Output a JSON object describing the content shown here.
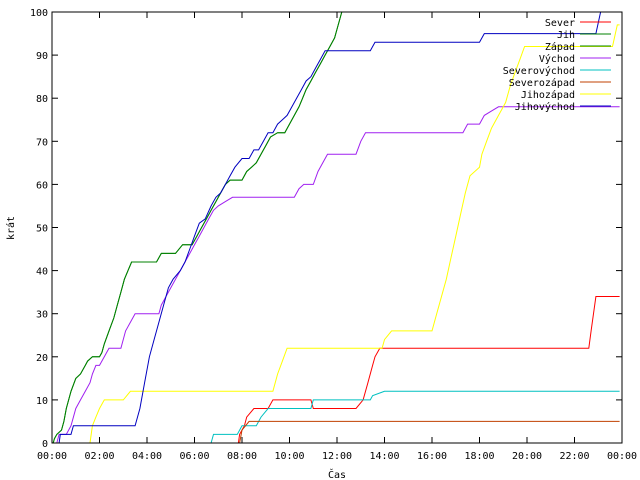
{
  "chart_data": {
    "type": "line",
    "title": "",
    "xlabel": "Čas",
    "ylabel": "krát",
    "xlim": [
      0,
      24
    ],
    "ylim": [
      0,
      100
    ],
    "x_ticks": [
      {
        "value": 0,
        "label": "00:00"
      },
      {
        "value": 2,
        "label": "02:00"
      },
      {
        "value": 4,
        "label": "04:00"
      },
      {
        "value": 6,
        "label": "06:00"
      },
      {
        "value": 8,
        "label": "08:00"
      },
      {
        "value": 10,
        "label": "10:00"
      },
      {
        "value": 12,
        "label": "12:00"
      },
      {
        "value": 14,
        "label": "14:00"
      },
      {
        "value": 16,
        "label": "16:00"
      },
      {
        "value": 18,
        "label": "18:00"
      },
      {
        "value": 20,
        "label": "20:00"
      },
      {
        "value": 22,
        "label": "22:00"
      },
      {
        "value": 24,
        "label": "00:00"
      }
    ],
    "y_ticks": [
      0,
      10,
      20,
      30,
      40,
      50,
      60,
      70,
      80,
      90,
      100
    ],
    "grid": false,
    "legend_position": "top-right",
    "series": [
      {
        "name": "Sever",
        "color": "#ff0000",
        "points": [
          [
            7.85,
            0
          ],
          [
            7.9,
            2
          ],
          [
            8.1,
            4
          ],
          [
            8.2,
            6
          ],
          [
            8.35,
            7
          ],
          [
            8.5,
            8
          ],
          [
            9.1,
            8
          ],
          [
            9.3,
            10
          ],
          [
            10.9,
            10
          ],
          [
            11.0,
            8
          ],
          [
            12.8,
            8
          ],
          [
            13.1,
            10
          ],
          [
            13.3,
            14
          ],
          [
            13.5,
            18
          ],
          [
            13.6,
            20
          ],
          [
            13.8,
            22
          ],
          [
            22.6,
            22
          ],
          [
            22.7,
            26
          ],
          [
            22.8,
            30
          ],
          [
            22.9,
            34
          ],
          [
            23.9,
            34
          ]
        ]
      },
      {
        "name": "Jih",
        "color": "#008000",
        "points": [
          [
            0.05,
            0
          ],
          [
            0.1,
            1
          ],
          [
            0.2,
            2
          ],
          [
            0.4,
            3
          ],
          [
            0.5,
            5
          ],
          [
            0.6,
            8
          ],
          [
            0.8,
            12
          ],
          [
            1.0,
            15
          ],
          [
            1.2,
            16
          ],
          [
            1.4,
            18
          ],
          [
            1.5,
            19
          ],
          [
            1.7,
            20
          ],
          [
            2.0,
            20
          ],
          [
            2.1,
            21
          ],
          [
            2.2,
            23
          ],
          [
            2.4,
            26
          ],
          [
            2.6,
            29
          ],
          [
            2.75,
            32
          ],
          [
            2.9,
            35
          ],
          [
            3.05,
            38
          ],
          [
            3.2,
            40
          ],
          [
            3.35,
            42
          ],
          [
            4.4,
            42
          ],
          [
            4.6,
            44
          ],
          [
            5.2,
            44
          ],
          [
            5.5,
            46
          ],
          [
            5.9,
            46
          ],
          [
            6.1,
            48
          ],
          [
            6.3,
            50
          ],
          [
            6.5,
            52
          ],
          [
            6.7,
            54
          ],
          [
            6.9,
            56
          ],
          [
            7.1,
            58
          ],
          [
            7.3,
            60
          ],
          [
            7.5,
            61
          ],
          [
            8.0,
            61
          ],
          [
            8.2,
            63
          ],
          [
            8.4,
            64
          ],
          [
            8.6,
            65
          ],
          [
            8.8,
            67
          ],
          [
            9.0,
            69
          ],
          [
            9.2,
            71
          ],
          [
            9.5,
            72
          ],
          [
            9.8,
            72
          ],
          [
            10.0,
            74
          ],
          [
            10.2,
            76
          ],
          [
            10.4,
            78
          ],
          [
            10.55,
            80
          ],
          [
            10.7,
            82
          ],
          [
            10.9,
            84
          ],
          [
            11.1,
            86
          ],
          [
            11.3,
            88
          ],
          [
            11.5,
            90
          ],
          [
            11.7,
            92
          ],
          [
            11.9,
            94
          ],
          [
            12.0,
            96
          ],
          [
            12.1,
            98
          ],
          [
            12.2,
            100
          ]
        ]
      },
      {
        "name": "Západ",
        "color": "#008000",
        "points": [
          [
            0.05,
            0
          ],
          [
            0.1,
            1
          ],
          [
            0.2,
            2
          ],
          [
            0.4,
            3
          ],
          [
            0.5,
            5
          ],
          [
            0.6,
            8
          ],
          [
            0.8,
            12
          ],
          [
            1.0,
            15
          ],
          [
            1.2,
            16
          ],
          [
            1.4,
            18
          ],
          [
            1.5,
            19
          ],
          [
            1.7,
            20
          ],
          [
            2.0,
            20
          ],
          [
            2.1,
            21
          ],
          [
            2.2,
            23
          ],
          [
            2.4,
            26
          ],
          [
            2.6,
            29
          ],
          [
            2.75,
            32
          ],
          [
            2.9,
            35
          ],
          [
            3.05,
            38
          ],
          [
            3.2,
            40
          ],
          [
            3.35,
            42
          ],
          [
            4.4,
            42
          ],
          [
            4.6,
            44
          ],
          [
            5.2,
            44
          ],
          [
            5.5,
            46
          ],
          [
            5.9,
            46
          ],
          [
            6.1,
            48
          ],
          [
            6.3,
            50
          ],
          [
            6.5,
            52
          ],
          [
            6.7,
            54
          ],
          [
            6.9,
            56
          ],
          [
            7.1,
            58
          ],
          [
            7.3,
            60
          ],
          [
            7.5,
            61
          ],
          [
            8.0,
            61
          ],
          [
            8.2,
            63
          ],
          [
            8.4,
            64
          ],
          [
            8.6,
            65
          ],
          [
            8.8,
            67
          ],
          [
            9.0,
            69
          ],
          [
            9.2,
            71
          ],
          [
            9.5,
            72
          ],
          [
            9.8,
            72
          ],
          [
            10.0,
            74
          ],
          [
            10.2,
            76
          ],
          [
            10.4,
            78
          ],
          [
            10.55,
            80
          ],
          [
            10.7,
            82
          ],
          [
            10.9,
            84
          ],
          [
            11.1,
            86
          ],
          [
            11.3,
            88
          ],
          [
            11.5,
            90
          ],
          [
            11.7,
            92
          ],
          [
            11.9,
            94
          ],
          [
            12.0,
            96
          ],
          [
            12.1,
            98
          ],
          [
            12.2,
            100
          ]
        ]
      },
      {
        "name": "Východ",
        "color": "#a020f0",
        "points": [
          [
            0.2,
            0
          ],
          [
            0.3,
            2
          ],
          [
            0.6,
            2
          ],
          [
            0.8,
            4
          ],
          [
            1.0,
            8
          ],
          [
            1.2,
            10
          ],
          [
            1.4,
            12
          ],
          [
            1.6,
            14
          ],
          [
            1.7,
            16
          ],
          [
            1.85,
            18
          ],
          [
            2.0,
            18
          ],
          [
            2.2,
            20
          ],
          [
            2.4,
            22
          ],
          [
            2.9,
            22
          ],
          [
            3.1,
            26
          ],
          [
            3.3,
            28
          ],
          [
            3.5,
            30
          ],
          [
            4.5,
            30
          ],
          [
            4.6,
            32
          ],
          [
            4.8,
            34
          ],
          [
            5.0,
            36
          ],
          [
            5.2,
            38
          ],
          [
            5.4,
            40
          ],
          [
            5.6,
            42
          ],
          [
            5.8,
            44
          ],
          [
            6.0,
            46
          ],
          [
            6.2,
            48
          ],
          [
            6.4,
            50
          ],
          [
            6.6,
            52
          ],
          [
            6.8,
            54
          ],
          [
            7.0,
            55
          ],
          [
            7.3,
            56
          ],
          [
            7.6,
            57
          ],
          [
            10.2,
            57
          ],
          [
            10.4,
            59
          ],
          [
            10.6,
            60
          ],
          [
            11.0,
            60
          ],
          [
            11.2,
            63
          ],
          [
            11.4,
            65
          ],
          [
            11.6,
            67
          ],
          [
            12.8,
            67
          ],
          [
            13.0,
            70
          ],
          [
            13.2,
            72
          ],
          [
            17.3,
            72
          ],
          [
            17.5,
            74
          ],
          [
            18.0,
            74
          ],
          [
            18.2,
            76
          ],
          [
            18.5,
            77
          ],
          [
            18.8,
            78
          ],
          [
            23.9,
            78
          ]
        ]
      },
      {
        "name": "Severovýchod",
        "color": "#00c0c0",
        "points": [
          [
            6.7,
            0
          ],
          [
            6.8,
            2
          ],
          [
            7.8,
            2
          ],
          [
            8.0,
            4
          ],
          [
            8.6,
            4
          ],
          [
            8.8,
            6
          ],
          [
            9.1,
            8
          ],
          [
            10.9,
            8
          ],
          [
            11.0,
            10
          ],
          [
            13.4,
            10
          ],
          [
            13.5,
            11
          ],
          [
            14.0,
            12
          ],
          [
            23.9,
            12
          ]
        ]
      },
      {
        "name": "Severozápad",
        "color": "#c04000",
        "points": [
          [
            7.9,
            0
          ],
          [
            8.0,
            3
          ],
          [
            8.3,
            5
          ],
          [
            23.9,
            5
          ]
        ]
      },
      {
        "name": "Jihozápad",
        "color": "#ffff00",
        "points": [
          [
            1.6,
            0
          ],
          [
            1.7,
            4
          ],
          [
            1.85,
            6
          ],
          [
            2.0,
            8
          ],
          [
            2.2,
            10
          ],
          [
            3.0,
            10
          ],
          [
            3.3,
            12
          ],
          [
            9.3,
            12
          ],
          [
            9.5,
            16
          ],
          [
            9.7,
            19
          ],
          [
            9.9,
            22
          ],
          [
            13.9,
            22
          ],
          [
            14.0,
            24
          ],
          [
            14.3,
            26
          ],
          [
            16.0,
            26
          ],
          [
            16.2,
            30
          ],
          [
            16.4,
            34
          ],
          [
            16.6,
            38
          ],
          [
            16.8,
            43
          ],
          [
            17.0,
            48
          ],
          [
            17.2,
            53
          ],
          [
            17.4,
            58
          ],
          [
            17.6,
            62
          ],
          [
            18.0,
            64
          ],
          [
            18.1,
            67
          ],
          [
            18.3,
            70
          ],
          [
            18.5,
            73
          ],
          [
            18.8,
            76
          ],
          [
            19.1,
            79
          ],
          [
            19.3,
            83
          ],
          [
            19.5,
            86
          ],
          [
            19.7,
            89
          ],
          [
            19.9,
            92
          ],
          [
            23.6,
            92
          ],
          [
            23.8,
            97
          ],
          [
            23.9,
            97
          ]
        ]
      },
      {
        "name": "Jihovýchod",
        "color": "#0000c0",
        "points": [
          [
            0.3,
            0
          ],
          [
            0.35,
            2
          ],
          [
            0.8,
            2
          ],
          [
            0.9,
            4
          ],
          [
            3.5,
            4
          ],
          [
            3.7,
            8
          ],
          [
            3.9,
            14
          ],
          [
            4.1,
            20
          ],
          [
            4.3,
            24
          ],
          [
            4.5,
            28
          ],
          [
            4.7,
            32
          ],
          [
            4.9,
            36
          ],
          [
            5.1,
            38
          ],
          [
            5.4,
            40
          ],
          [
            5.6,
            42
          ],
          [
            5.8,
            45
          ],
          [
            6.0,
            48
          ],
          [
            6.2,
            51
          ],
          [
            6.45,
            52
          ],
          [
            6.7,
            55
          ],
          [
            6.9,
            57
          ],
          [
            7.1,
            58
          ],
          [
            7.3,
            60
          ],
          [
            7.5,
            62
          ],
          [
            7.7,
            64
          ],
          [
            8.0,
            66
          ],
          [
            8.3,
            66
          ],
          [
            8.5,
            68
          ],
          [
            8.7,
            68
          ],
          [
            8.9,
            70
          ],
          [
            9.1,
            72
          ],
          [
            9.3,
            72
          ],
          [
            9.5,
            74
          ],
          [
            9.7,
            75
          ],
          [
            9.9,
            76
          ],
          [
            10.1,
            78
          ],
          [
            10.3,
            80
          ],
          [
            10.5,
            82
          ],
          [
            10.7,
            84
          ],
          [
            10.9,
            85
          ],
          [
            11.1,
            87
          ],
          [
            11.3,
            89
          ],
          [
            11.5,
            91
          ],
          [
            13.4,
            91
          ],
          [
            13.6,
            93
          ],
          [
            18.0,
            93
          ],
          [
            18.2,
            95
          ],
          [
            22.9,
            95
          ],
          [
            23.1,
            100
          ]
        ]
      }
    ]
  }
}
